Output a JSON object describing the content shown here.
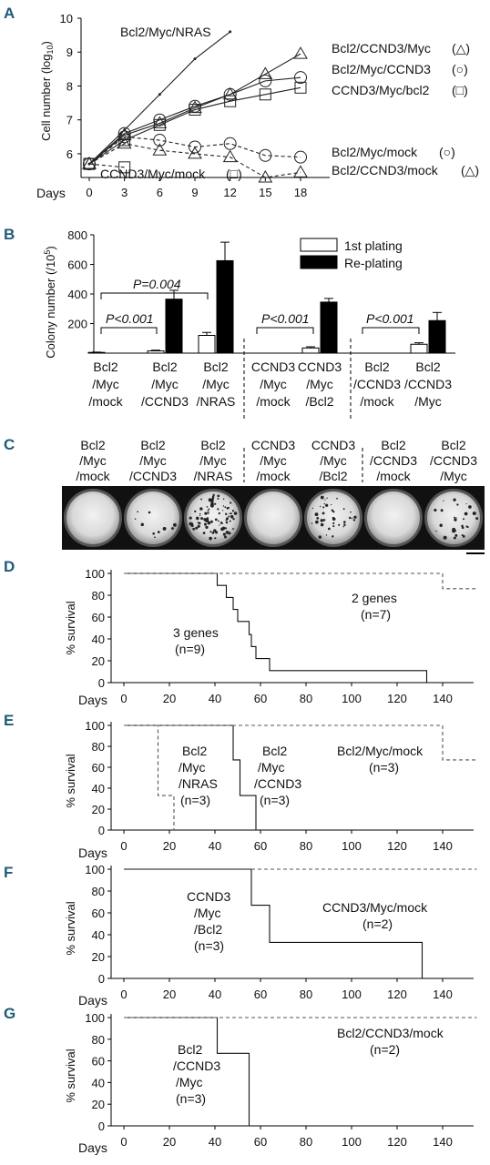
{
  "panels": [
    {
      "letter": "A",
      "type": "line",
      "ylabel": "Cell number (log",
      "ylabel_sub": "10",
      "ylabel_end": ")",
      "xlabel": "Days",
      "x_ticks": [
        "0",
        "3",
        "6",
        "9",
        "12",
        "15",
        "18"
      ],
      "y_ticks": [
        "6",
        "7",
        "8",
        "9",
        "10"
      ],
      "xlim": [
        0,
        18
      ],
      "ylim": [
        5.3,
        10
      ],
      "series": [
        {
          "name": "Bcl2/Myc/NRAS",
          "symbol": "none",
          "dashed": false,
          "x": [
            0,
            3,
            6,
            9,
            12
          ],
          "y": [
            5.7,
            6.7,
            7.75,
            8.8,
            9.6
          ]
        },
        {
          "name": "Bcl2/CCND3/Myc",
          "symbol": "△",
          "dashed": false,
          "x": [
            0,
            3,
            6,
            9,
            12,
            15,
            18
          ],
          "y": [
            5.7,
            6.55,
            6.9,
            7.35,
            7.75,
            8.35,
            8.95
          ]
        },
        {
          "name": "Bcl2/Myc/CCND3",
          "symbol": "○",
          "dashed": false,
          "x": [
            0,
            3,
            6,
            9,
            12,
            15,
            18
          ],
          "y": [
            5.7,
            6.6,
            7.0,
            7.4,
            7.75,
            8.15,
            8.25
          ]
        },
        {
          "name": "CCND3/Myc/bcl2",
          "symbol": "□",
          "dashed": false,
          "x": [
            0,
            3,
            6,
            9,
            12,
            15,
            18
          ],
          "y": [
            5.7,
            6.4,
            6.85,
            7.3,
            7.55,
            7.75,
            7.95
          ]
        },
        {
          "name": "Bcl2/Myc/mock",
          "symbol": "○",
          "dashed": true,
          "x": [
            0,
            3,
            6,
            9,
            12,
            15,
            18
          ],
          "y": [
            5.7,
            6.5,
            6.4,
            6.2,
            6.3,
            5.95,
            5.9
          ]
        },
        {
          "name": "CCND3/Myc/mock",
          "symbol": "□",
          "dashed": true,
          "x": [
            0,
            3
          ],
          "y": [
            5.7,
            5.6
          ]
        },
        {
          "name": "Bcl2/CCND3/mock",
          "symbol": "△",
          "dashed": true,
          "x": [
            0,
            3,
            6,
            9,
            12,
            15,
            18
          ],
          "y": [
            5.7,
            6.3,
            6.1,
            6.0,
            5.9,
            5.3,
            5.45
          ]
        }
      ],
      "legend_symbols": [
        "(△)",
        "(○)",
        "(□)",
        "(○)",
        "(□)",
        "(△)"
      ]
    },
    {
      "letter": "B",
      "type": "bar",
      "ylabel": "Colony number (/10",
      "ylabel_sup": "5",
      "ylabel_end": ")",
      "y_ticks": [
        "200",
        "400",
        "600",
        "800"
      ],
      "ylim": [
        0,
        800
      ],
      "legend": [
        "1st plating",
        "Re-plating"
      ],
      "groups": [
        {
          "label": [
            "Bcl2",
            "/Myc",
            "/mock"
          ],
          "first": 5,
          "replating": 0
        },
        {
          "label": [
            "Bcl2",
            "/Myc",
            "/CCND3"
          ],
          "first": 15,
          "replating": 365
        },
        {
          "label": [
            "Bcl2",
            "/Myc",
            "/NRAS"
          ],
          "first": 120,
          "replating": 625
        },
        {
          "label": [
            "CCND3",
            "/Myc",
            "/mock"
          ],
          "first": 0,
          "replating": 0
        },
        {
          "label": [
            "CCND3",
            "/Myc",
            "/Bcl2"
          ],
          "first": 35,
          "replating": 345
        },
        {
          "label": [
            "Bcl2",
            "/CCND3",
            "/mock"
          ],
          "first": 0,
          "replating": 0
        },
        {
          "label": [
            "Bcl2",
            "/CCND3",
            "/Myc"
          ],
          "first": 60,
          "replating": 220
        }
      ],
      "errors": {
        "first": [
          2,
          5,
          20,
          0,
          8,
          0,
          10
        ],
        "replating": [
          0,
          60,
          125,
          0,
          25,
          0,
          55
        ]
      },
      "pvalues": [
        "P=0.004",
        "P<0.001",
        "P<0.001",
        "P<0.001"
      ]
    },
    {
      "letter": "C",
      "labels": [
        [
          "Bcl2",
          "/Myc",
          "/mock"
        ],
        [
          "Bcl2",
          "/Myc",
          "/CCND3"
        ],
        [
          "Bcl2",
          "/Myc",
          "/NRAS"
        ],
        [
          "CCND3",
          "/Myc",
          "/mock"
        ],
        [
          "CCND3",
          "/Myc",
          "/Bcl2"
        ],
        [
          "Bcl2",
          "/CCND3",
          "/mock"
        ],
        [
          "Bcl2",
          "/CCND3",
          "/Myc"
        ]
      ],
      "colony_density": [
        0,
        10,
        90,
        0,
        40,
        0,
        30
      ]
    },
    {
      "letter": "D",
      "ylabel": "% survival",
      "xlabel": "Days",
      "x_ticks": [
        "0",
        "20",
        "40",
        "60",
        "80",
        "100",
        "120",
        "140"
      ],
      "y_ticks": [
        "0",
        "20",
        "40",
        "60",
        "80",
        "100"
      ],
      "series": [
        {
          "name": "3 genes",
          "n": "(n=9)",
          "dashed": false,
          "x": [
            0,
            41,
            41,
            45,
            45,
            48,
            48,
            50,
            50,
            55,
            55,
            56,
            56,
            58,
            58,
            64,
            64,
            133,
            133
          ],
          "y": [
            100,
            100,
            89,
            89,
            78,
            78,
            67,
            67,
            56,
            56,
            44,
            44,
            33,
            33,
            22,
            22,
            11,
            11,
            0
          ]
        },
        {
          "name": "2 genes",
          "n": "(n=7)",
          "dashed": true,
          "x": [
            0,
            140,
            140,
            155
          ],
          "y": [
            100,
            100,
            86,
            86
          ]
        }
      ]
    },
    {
      "letter": "E",
      "ylabel": "% survival",
      "xlabel": "Days",
      "x_ticks": [
        "0",
        "20",
        "40",
        "60",
        "80",
        "100",
        "120",
        "140"
      ],
      "y_ticks": [
        "0",
        "20",
        "40",
        "60",
        "80",
        "100"
      ],
      "series": [
        {
          "name": [
            "Bcl2",
            "/Myc",
            "/NRAS"
          ],
          "n": "(n=3)",
          "dashed": true,
          "x": [
            0,
            15,
            15,
            22,
            22
          ],
          "y": [
            100,
            100,
            33,
            33,
            0
          ]
        },
        {
          "name": [
            "Bcl2",
            "/Myc",
            "/CCND3"
          ],
          "n": "(n=3)",
          "dashed": false,
          "x": [
            0,
            48,
            48,
            51,
            51,
            58,
            58
          ],
          "y": [
            100,
            100,
            67,
            67,
            33,
            33,
            0
          ]
        },
        {
          "name": [
            "Bcl2/Myc/mock"
          ],
          "n": "(n=3)",
          "dashed": true,
          "x": [
            0,
            140,
            140,
            155
          ],
          "y": [
            100,
            100,
            67,
            67
          ]
        }
      ]
    },
    {
      "letter": "F",
      "ylabel": "% survival",
      "xlabel": "Days",
      "x_ticks": [
        "0",
        "20",
        "40",
        "60",
        "80",
        "100",
        "120",
        "140"
      ],
      "y_ticks": [
        "0",
        "20",
        "40",
        "60",
        "80",
        "100"
      ],
      "series": [
        {
          "name": [
            "CCND3",
            "/Myc",
            "/Bcl2"
          ],
          "n": "(n=3)",
          "dashed": false,
          "x": [
            0,
            56,
            56,
            64,
            64,
            131,
            131
          ],
          "y": [
            100,
            100,
            67,
            67,
            33,
            33,
            0
          ]
        },
        {
          "name": [
            "CCND3/Myc/mock"
          ],
          "n": "(n=2)",
          "dashed": true,
          "x": [
            56,
            155
          ],
          "y": [
            100,
            100
          ]
        }
      ]
    },
    {
      "letter": "G",
      "ylabel": "% survival",
      "xlabel": "Days",
      "x_ticks": [
        "0",
        "20",
        "40",
        "60",
        "80",
        "100",
        "120",
        "140"
      ],
      "y_ticks": [
        "0",
        "20",
        "40",
        "60",
        "80",
        "100"
      ],
      "series": [
        {
          "name": [
            "Bcl2",
            "/CCND3",
            "/Myc"
          ],
          "n": "(n=3)",
          "dashed": false,
          "x": [
            0,
            41,
            41,
            55,
            55
          ],
          "y": [
            100,
            100,
            67,
            67,
            0
          ]
        },
        {
          "name": [
            "Bcl2/CCND3/mock"
          ],
          "n": "(n=2)",
          "dashed": true,
          "x": [
            0,
            155
          ],
          "y": [
            100,
            100
          ]
        }
      ]
    }
  ]
}
